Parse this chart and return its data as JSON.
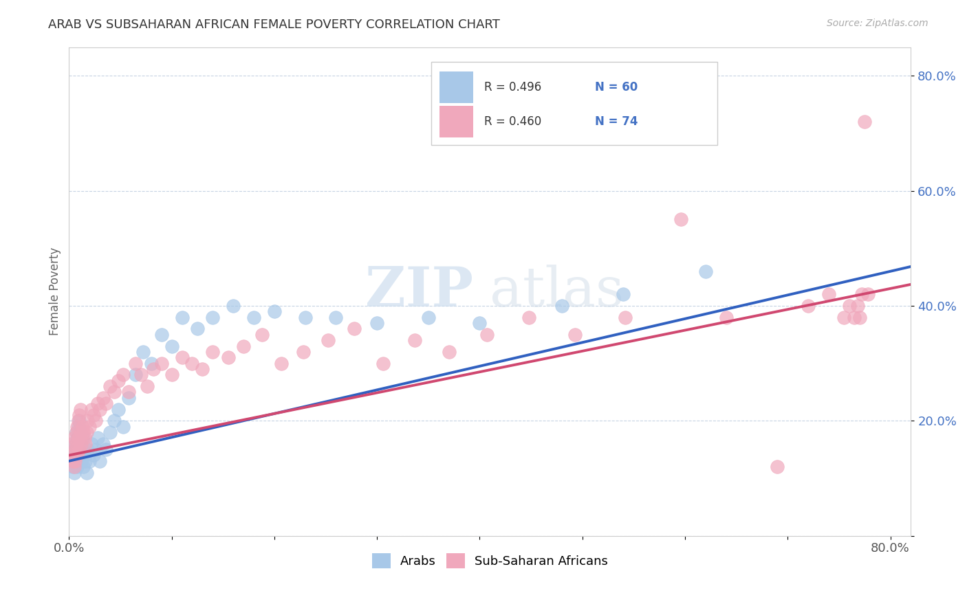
{
  "title": "ARAB VS SUBSAHARAN AFRICAN FEMALE POVERTY CORRELATION CHART",
  "source_text": "Source: ZipAtlas.com",
  "ylabel": "Female Poverty",
  "arab_color": "#a8c8e8",
  "arab_line_color": "#3060c0",
  "subsaharan_color": "#f0a8bc",
  "subsaharan_line_color": "#d04870",
  "arab_R": 0.496,
  "arab_N": 60,
  "subsaharan_R": 0.46,
  "subsaharan_N": 74,
  "watermark_zip": "ZIP",
  "watermark_atlas": "atlas",
  "legend_R_color": "#333333",
  "legend_N_color": "#4472c4",
  "ytick_color": "#4472c4",
  "xlim": [
    0.0,
    0.82
  ],
  "ylim": [
    0.0,
    0.85
  ],
  "arab_x": [
    0.002,
    0.003,
    0.004,
    0.005,
    0.005,
    0.006,
    0.006,
    0.007,
    0.007,
    0.007,
    0.008,
    0.008,
    0.008,
    0.009,
    0.009,
    0.01,
    0.01,
    0.011,
    0.011,
    0.012,
    0.012,
    0.013,
    0.013,
    0.014,
    0.015,
    0.016,
    0.017,
    0.018,
    0.02,
    0.022,
    0.024,
    0.026,
    0.028,
    0.03,
    0.033,
    0.036,
    0.04,
    0.044,
    0.048,
    0.053,
    0.058,
    0.065,
    0.072,
    0.08,
    0.09,
    0.1,
    0.11,
    0.125,
    0.14,
    0.16,
    0.18,
    0.2,
    0.23,
    0.26,
    0.3,
    0.35,
    0.4,
    0.48,
    0.54,
    0.62
  ],
  "arab_y": [
    0.14,
    0.13,
    0.12,
    0.15,
    0.11,
    0.16,
    0.13,
    0.18,
    0.15,
    0.14,
    0.17,
    0.13,
    0.12,
    0.19,
    0.16,
    0.2,
    0.15,
    0.18,
    0.16,
    0.14,
    0.13,
    0.15,
    0.17,
    0.12,
    0.14,
    0.13,
    0.11,
    0.15,
    0.13,
    0.16,
    0.14,
    0.15,
    0.17,
    0.13,
    0.16,
    0.15,
    0.18,
    0.2,
    0.22,
    0.19,
    0.24,
    0.28,
    0.32,
    0.3,
    0.35,
    0.33,
    0.38,
    0.36,
    0.38,
    0.4,
    0.38,
    0.39,
    0.38,
    0.38,
    0.37,
    0.38,
    0.37,
    0.4,
    0.42,
    0.46
  ],
  "subsaharan_x": [
    0.002,
    0.003,
    0.004,
    0.005,
    0.005,
    0.006,
    0.006,
    0.007,
    0.007,
    0.008,
    0.008,
    0.009,
    0.009,
    0.01,
    0.01,
    0.011,
    0.011,
    0.012,
    0.013,
    0.014,
    0.015,
    0.016,
    0.017,
    0.018,
    0.02,
    0.022,
    0.024,
    0.026,
    0.028,
    0.03,
    0.033,
    0.036,
    0.04,
    0.044,
    0.048,
    0.053,
    0.058,
    0.065,
    0.07,
    0.076,
    0.082,
    0.09,
    0.1,
    0.11,
    0.12,
    0.13,
    0.14,
    0.155,
    0.17,
    0.188,
    0.207,
    0.228,
    0.252,
    0.278,
    0.306,
    0.337,
    0.37,
    0.407,
    0.448,
    0.493,
    0.542,
    0.596,
    0.64,
    0.69,
    0.72,
    0.74,
    0.755,
    0.76,
    0.765,
    0.768,
    0.77,
    0.772,
    0.775,
    0.778
  ],
  "subsaharan_y": [
    0.16,
    0.14,
    0.13,
    0.17,
    0.12,
    0.15,
    0.13,
    0.18,
    0.16,
    0.19,
    0.14,
    0.2,
    0.17,
    0.21,
    0.15,
    0.22,
    0.18,
    0.16,
    0.19,
    0.18,
    0.17,
    0.16,
    0.18,
    0.2,
    0.19,
    0.22,
    0.21,
    0.2,
    0.23,
    0.22,
    0.24,
    0.23,
    0.26,
    0.25,
    0.27,
    0.28,
    0.25,
    0.3,
    0.28,
    0.26,
    0.29,
    0.3,
    0.28,
    0.31,
    0.3,
    0.29,
    0.32,
    0.31,
    0.33,
    0.35,
    0.3,
    0.32,
    0.34,
    0.36,
    0.3,
    0.34,
    0.32,
    0.35,
    0.38,
    0.35,
    0.38,
    0.55,
    0.38,
    0.12,
    0.4,
    0.42,
    0.38,
    0.4,
    0.38,
    0.4,
    0.38,
    0.42,
    0.72,
    0.42
  ]
}
